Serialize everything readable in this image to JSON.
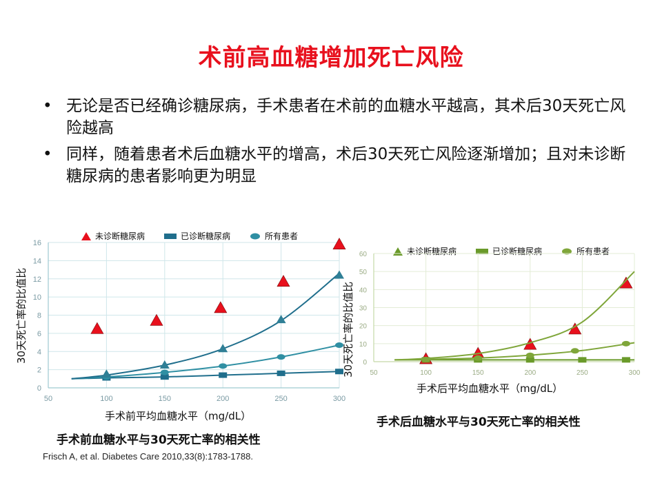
{
  "title": "术前高血糖增加死亡风险",
  "bullets": [
    "无论是否已经确诊糖尿病，手术患者在术前的血糖水平越高，其术后30天死亡风险越高",
    "同样，随着患者术后血糖水平的增高，术后30天死亡风险逐渐增加；且对未诊断糖尿病的患者影响更为明显"
  ],
  "bullet_glyph": "•",
  "left_chart": {
    "caption": "手术前血糖水平与30天死亡率的相关性",
    "reference": "Frisch A, et al. Diabetes Care 2010,33(8):1783-1788.",
    "xlabel": "手术前平均血糖水平（mg/dL）",
    "ylabel": "30天死亡率的比值比",
    "legend": [
      "未诊断糖尿病",
      "已诊断糖尿病",
      "所有患者"
    ]
  },
  "right_chart": {
    "caption": "手术后血糖水平与30天死亡率的相关性",
    "xlabel": "手术后平均血糖水平（mg/dL）",
    "ylabel": "30天死亡率的比值比",
    "legend": [
      "未诊断糖尿病",
      "已诊断糖尿病",
      "所有患者"
    ]
  },
  "chart_data": [
    {
      "type": "scatter",
      "xlabel": "手术前平均血糖水平（mg/dL）",
      "ylabel": "30天死亡率的比值比",
      "xlim": [
        50,
        300
      ],
      "ylim": [
        0,
        16
      ],
      "xticks": [
        50,
        100,
        150,
        200,
        250,
        300
      ],
      "yticks": [
        0,
        2,
        4,
        6,
        8,
        10,
        12,
        14,
        16
      ],
      "grid": true,
      "legend_position": "top",
      "colors": {
        "undiagnosed": "#e8101d",
        "diagnosed": "#1f6e8c",
        "all": "#2f8fa3",
        "grid": "#cfe6ea",
        "axis": "#9ec9d1"
      },
      "series": [
        {
          "name": "未诊断糖尿病",
          "marker": "triangle",
          "x": [
            92,
            143,
            198,
            252,
            300
          ],
          "y": [
            6.5,
            7.4,
            8.8,
            11.7,
            15.8
          ]
        },
        {
          "name": "已诊断糖尿病",
          "marker": "square",
          "x": [
            100,
            150,
            200,
            250,
            300
          ],
          "y": [
            1.1,
            1.2,
            1.4,
            1.6,
            1.8
          ],
          "curve_x": [
            70,
            100,
            150,
            200,
            250,
            300
          ],
          "curve_y": [
            1.0,
            1.1,
            1.2,
            1.4,
            1.6,
            1.8
          ]
        },
        {
          "name": "所有患者",
          "marker": "circle",
          "x": [
            100,
            150,
            200,
            250,
            300
          ],
          "y": [
            1.2,
            1.7,
            2.4,
            3.4,
            4.7
          ],
          "curve_x": [
            70,
            100,
            150,
            200,
            250,
            300
          ],
          "curve_y": [
            1.0,
            1.2,
            1.7,
            2.4,
            3.4,
            4.7
          ]
        },
        {
          "name": "",
          "marker": "triangle-fit",
          "x": [
            100,
            150,
            200,
            250,
            300
          ],
          "y": [
            1.5,
            2.5,
            4.3,
            7.5,
            12.4
          ],
          "curve_x": [
            70,
            100,
            150,
            200,
            250,
            300
          ],
          "curve_y": [
            1.0,
            1.4,
            2.5,
            4.3,
            7.4,
            12.6
          ]
        }
      ]
    },
    {
      "type": "scatter",
      "xlabel": "手术后平均血糖水平（mg/dL）",
      "ylabel": "30天死亡率的比值比",
      "xlim": [
        50,
        300
      ],
      "ylim": [
        0,
        60
      ],
      "xticks": [
        50,
        100,
        150,
        200,
        250,
        300
      ],
      "yticks": [
        0,
        10,
        20,
        30,
        40,
        50,
        60
      ],
      "grid": true,
      "legend_position": "top",
      "colors": {
        "undiagnosed": "#e8101d",
        "diagnosed": "#6a9a2a",
        "all": "#7fa63a",
        "grid": "#e3ecd6",
        "axis": "#c5d8a8"
      },
      "series": [
        {
          "name": "未诊断糖尿病",
          "marker": "triangle",
          "x": [
            100,
            150,
            200,
            243,
            292
          ],
          "y": [
            1.5,
            4.5,
            9.5,
            18,
            43.5
          ]
        },
        {
          "name": "已诊断糖尿病",
          "marker": "square",
          "x": [
            100,
            150,
            200,
            250,
            292
          ],
          "y": [
            1,
            1,
            1,
            1,
            1
          ],
          "curve_x": [
            70,
            100,
            150,
            200,
            250,
            300
          ],
          "curve_y": [
            1,
            1,
            1,
            1,
            1,
            1
          ]
        },
        {
          "name": "所有患者",
          "marker": "circle",
          "x": [
            100,
            150,
            200,
            243,
            292
          ],
          "y": [
            1.2,
            2,
            3.5,
            6,
            10
          ],
          "curve_x": [
            70,
            100,
            150,
            200,
            250,
            300
          ],
          "curve_y": [
            1,
            1.3,
            2,
            3.6,
            6.2,
            10.5
          ]
        },
        {
          "name": "",
          "marker": "triangle-fit",
          "x": [],
          "y": [],
          "curve_x": [
            70,
            100,
            150,
            200,
            250,
            300
          ],
          "curve_y": [
            1,
            1.8,
            4.5,
            10.5,
            22,
            50
          ]
        }
      ]
    }
  ]
}
